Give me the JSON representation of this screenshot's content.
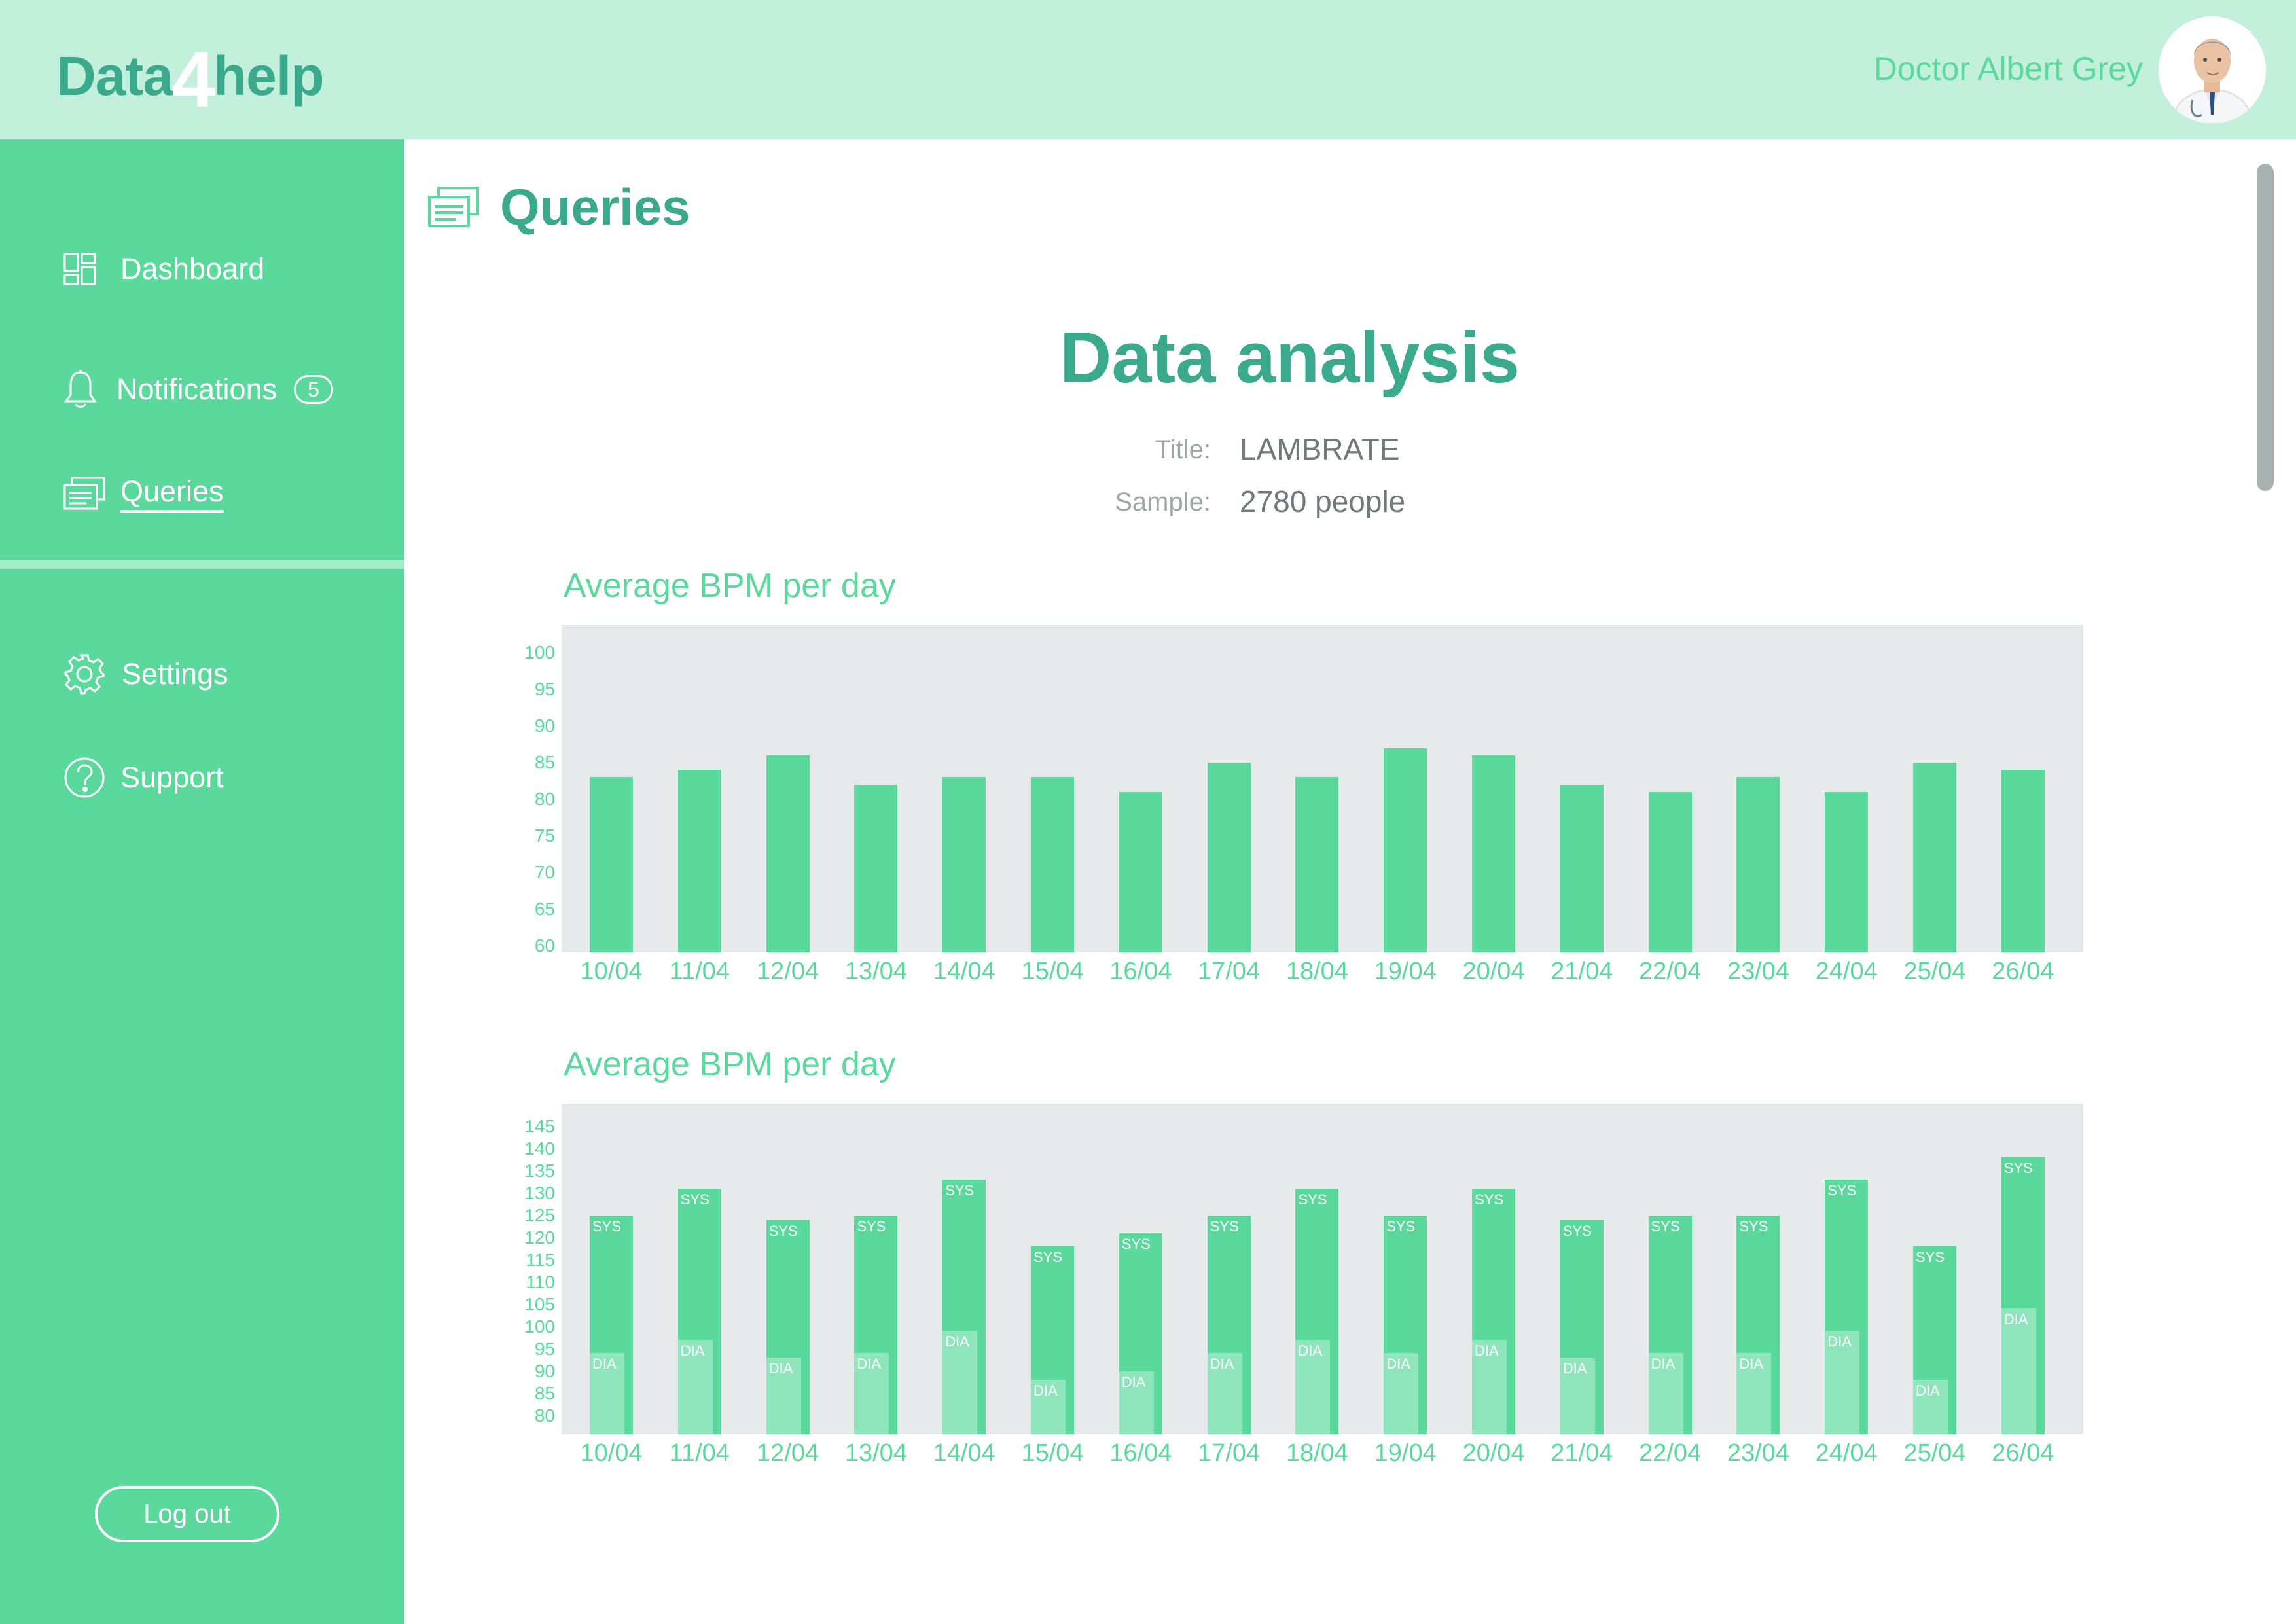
{
  "header": {
    "logo_part1": "Data",
    "logo_part2": "4",
    "logo_part3": "help",
    "doctor_name": "Doctor Albert Grey"
  },
  "sidebar": {
    "items": [
      {
        "label": "Dashboard",
        "icon": "dashboard-icon"
      },
      {
        "label": "Notifications",
        "icon": "bell-icon",
        "badge": "5"
      },
      {
        "label": "Queries",
        "icon": "queries-icon",
        "active": true
      },
      {
        "label": "Settings",
        "icon": "gear-icon"
      },
      {
        "label": "Support",
        "icon": "question-icon"
      }
    ],
    "logout_label": "Log out"
  },
  "main": {
    "page_title": "Queries",
    "analysis_title": "Data analysis",
    "title_label": "Title:",
    "title_value": "LAMBRATE",
    "sample_label": "Sample:",
    "sample_value": "2780 people"
  },
  "colors": {
    "accent": "#5bd99c",
    "accent_dark": "#3aa98c",
    "header_bg": "#c2f0da",
    "chart_bg": "#e7eaea",
    "dia_bar": "#8fe6bd"
  },
  "chart_data": [
    {
      "type": "bar",
      "title": "Average BPM per day",
      "categories": [
        "10/04",
        "11/04",
        "12/04",
        "13/04",
        "14/04",
        "15/04",
        "16/04",
        "17/04",
        "18/04",
        "19/04",
        "20/04",
        "21/04",
        "22/04",
        "23/04",
        "24/04",
        "25/04",
        "26/04"
      ],
      "values": [
        83,
        84,
        86,
        82,
        83,
        83,
        81,
        85,
        83,
        87,
        86,
        82,
        81,
        83,
        81,
        85,
        84
      ],
      "yticks": [
        "100",
        "95",
        "90",
        "85",
        "80",
        "75",
        "70",
        "65",
        "60"
      ],
      "ylim": [
        60,
        100
      ],
      "grid": false
    },
    {
      "type": "bar",
      "title": "Average BPM per day",
      "categories": [
        "10/04",
        "11/04",
        "12/04",
        "13/04",
        "14/04",
        "15/04",
        "16/04",
        "17/04",
        "18/04",
        "19/04",
        "20/04",
        "21/04",
        "22/04",
        "23/04",
        "24/04",
        "25/04",
        "26/04"
      ],
      "series": [
        {
          "name": "SYS",
          "values": [
            125,
            131,
            124,
            125,
            133,
            118,
            121,
            125,
            131,
            125,
            131,
            124,
            125,
            125,
            133,
            118,
            138
          ]
        },
        {
          "name": "DIA",
          "values": [
            94,
            97,
            93,
            94,
            99,
            88,
            90,
            94,
            97,
            94,
            97,
            93,
            94,
            94,
            99,
            88,
            104
          ]
        }
      ],
      "yticks": [
        "145",
        "140",
        "135",
        "130",
        "125",
        "120",
        "115",
        "110",
        "105",
        "100",
        "95",
        "90",
        "85",
        "80"
      ],
      "ylim": [
        77,
        146
      ],
      "grid": false
    }
  ]
}
